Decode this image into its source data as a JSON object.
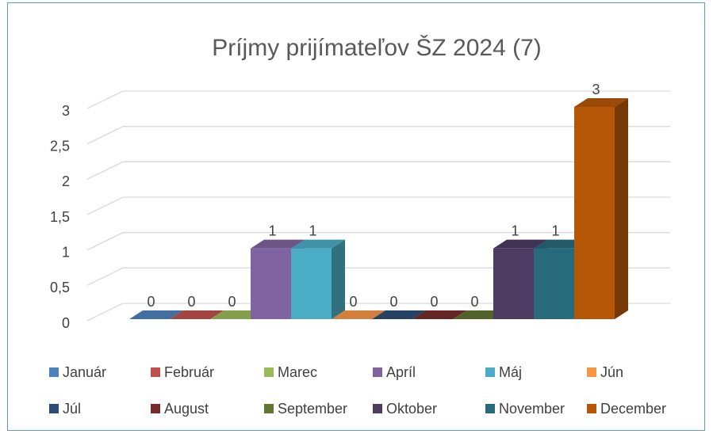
{
  "chart_data": {
    "type": "bar3d",
    "title": "Príjmy prijímateľov ŠZ 2024 (7)",
    "categories": [
      null
    ],
    "series": [
      {
        "name": "Január",
        "color": "#4f81bd",
        "values": [
          0
        ]
      },
      {
        "name": "Február",
        "color": "#c0504d",
        "values": [
          0
        ]
      },
      {
        "name": "Marec",
        "color": "#9bbb59",
        "values": [
          0
        ]
      },
      {
        "name": "Apríl",
        "color": "#8064a2",
        "values": [
          1
        ]
      },
      {
        "name": "Máj",
        "color": "#4bacc6",
        "values": [
          1
        ]
      },
      {
        "name": "Jún",
        "color": "#f79646",
        "values": [
          0
        ]
      },
      {
        "name": "Júl",
        "color": "#2c4d75",
        "values": [
          0
        ]
      },
      {
        "name": "August",
        "color": "#772c2a",
        "values": [
          0
        ]
      },
      {
        "name": "September",
        "color": "#5f7530",
        "values": [
          0
        ]
      },
      {
        "name": "Oktober",
        "color": "#4d3b62",
        "values": [
          1
        ]
      },
      {
        "name": "November",
        "color": "#276a7c",
        "values": [
          1
        ]
      },
      {
        "name": "December",
        "color": "#b65708",
        "values": [
          3
        ]
      }
    ],
    "ylim": [
      0,
      3
    ],
    "yticks": [
      0,
      {
        "value": 0.5,
        "label": "0,5"
      },
      1,
      {
        "value": 1.5,
        "label": "1,5"
      },
      2,
      {
        "value": 2.5,
        "label": "2,5"
      },
      3
    ],
    "grid": true,
    "data_labels": true,
    "legend": "bottom"
  }
}
